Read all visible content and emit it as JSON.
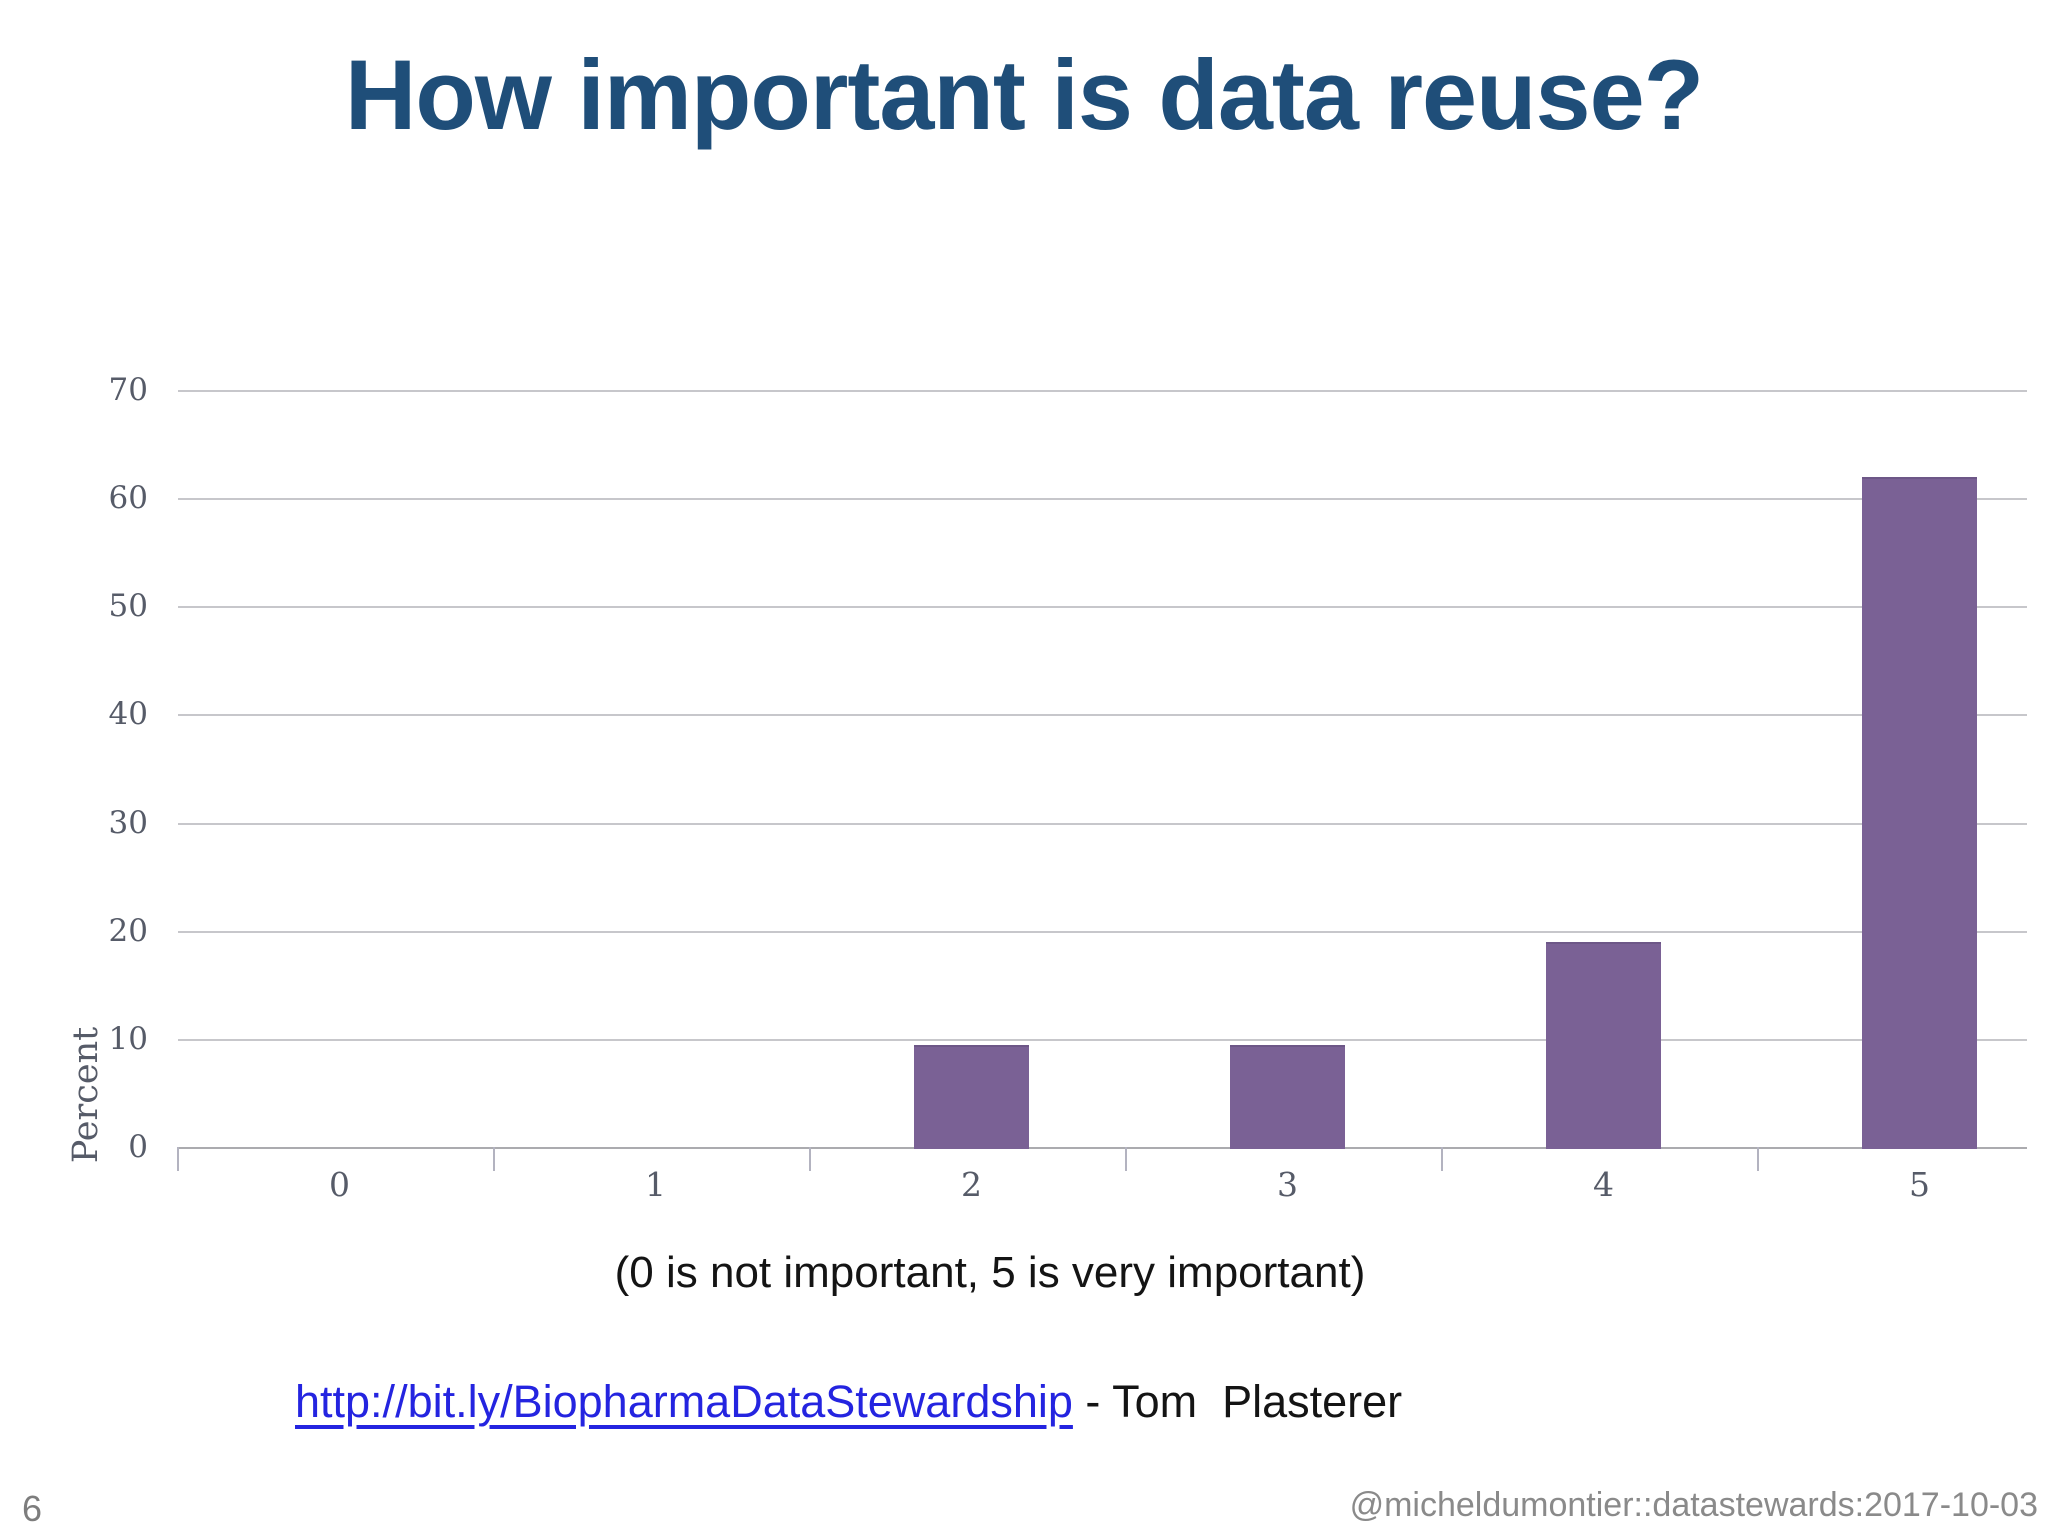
{
  "slide": {
    "title": "How important is data reuse?",
    "caption": "(0 is not important, 5 is very important)",
    "link_text": "http://bit.ly/BiopharmaDataStewardship",
    "attribution": " - Tom  Plasterer",
    "page_number": "6",
    "footer": "@micheldumontier::datastewards:2017-10-03"
  },
  "colors": {
    "title": "#1f4e79",
    "bar": "#7a6195",
    "gridline": "#c7c7cb",
    "axis_text": "#565b68",
    "link": "#2424e0",
    "footer_text": "#8a8a8a"
  },
  "chart_data": {
    "type": "bar",
    "categories": [
      "0",
      "1",
      "2",
      "3",
      "4",
      "5"
    ],
    "values": [
      0,
      0,
      9.4,
      9.4,
      19,
      62
    ],
    "title": "",
    "xlabel": "(0 is not important, 5 is very important)",
    "ylabel": "Percent",
    "ylim": [
      0,
      70
    ],
    "ytick_step": 10,
    "grid": true,
    "legend": false,
    "bar_color": "#7a6195"
  }
}
